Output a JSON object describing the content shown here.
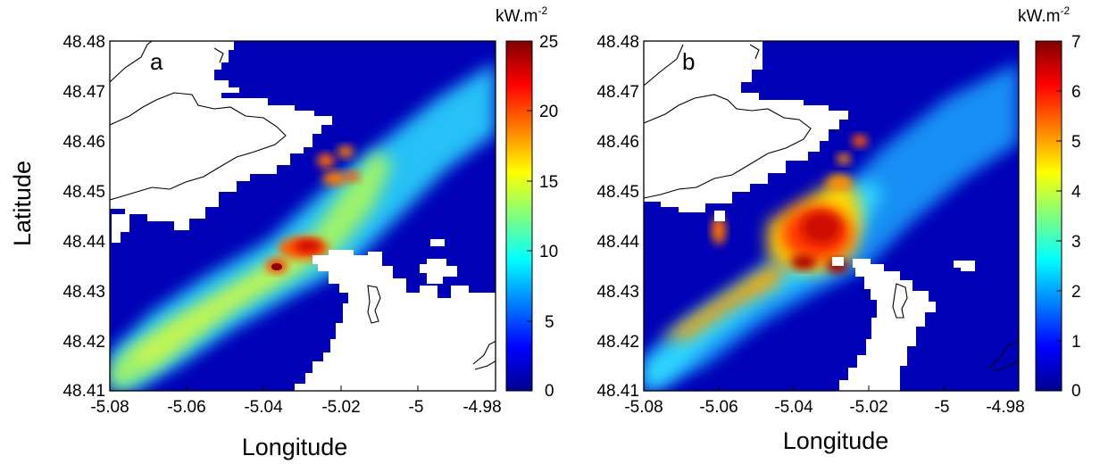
{
  "x_axis": {
    "label": "Longitude",
    "ticks": [
      "-5.08",
      "-5.06",
      "-5.04",
      "-5.02",
      "-5",
      "-4.98"
    ]
  },
  "y_axis": {
    "label": "Latitude",
    "ticks": [
      "48.48",
      "48.47",
      "48.46",
      "48.45",
      "48.44",
      "48.43",
      "48.42",
      "48.41"
    ]
  },
  "panels": [
    {
      "letter": "a",
      "colorbar_unit": "kW.m",
      "colorbar_unit_exp": "-2",
      "colorbar_ticks": [
        "25",
        "20",
        "15",
        "10",
        "5",
        "0"
      ],
      "colorbar_range": [
        0,
        25
      ]
    },
    {
      "letter": "b",
      "colorbar_unit": "kW.m",
      "colorbar_unit_exp": "-2",
      "colorbar_ticks": [
        "7",
        "6",
        "5",
        "4",
        "3",
        "2",
        "1",
        "0"
      ],
      "colorbar_range": [
        0,
        7
      ]
    }
  ],
  "colormap": [
    "#00008f",
    "#0000ff",
    "#00ffff",
    "#ffff00",
    "#ff0000",
    "#800000"
  ]
}
